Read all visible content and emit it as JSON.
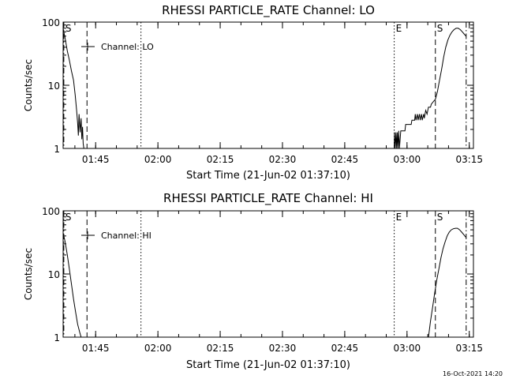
{
  "footer_timestamp": "16-Oct-2021 14:20",
  "chart_data": [
    {
      "type": "line",
      "title": "RHESSI PARTICLE_RATE Channel: LO",
      "xlabel": "Start Time (21-Jun-02 01:37:10)",
      "ylabel": "Counts/sec",
      "yscale": "log",
      "ylim": [
        1,
        100
      ],
      "xlim": [
        "01:37:10",
        "03:16:00"
      ],
      "x_ticks": [
        "01:45",
        "02:00",
        "02:15",
        "02:30",
        "02:45",
        "03:00",
        "03:15"
      ],
      "y_ticks": [
        "1",
        "10",
        "100"
      ],
      "legend": {
        "label": "Channel: LO",
        "position": "top-left"
      },
      "markers": [
        {
          "label": "S",
          "time": "01:37:20",
          "style": "dash-dot"
        },
        {
          "label": "",
          "time": "01:42:55",
          "style": "dashed"
        },
        {
          "label": "",
          "time": "01:55:55",
          "style": "dotted"
        },
        {
          "label": "E",
          "time": "02:56:55",
          "style": "dotted"
        },
        {
          "label": "S",
          "time": "03:06:50",
          "style": "dashed"
        },
        {
          "label": "",
          "time": "03:14:15",
          "style": "dash-dot"
        }
      ],
      "series": [
        {
          "segments": [
            [
              [
                "01:37:10",
                80
              ],
              [
                "01:37:40",
                55
              ],
              [
                "01:38:10",
                35
              ],
              [
                "01:38:40",
                25
              ],
              [
                "01:39:10",
                17
              ],
              [
                "01:39:40",
                12
              ],
              [
                "01:40:05",
                7
              ],
              [
                "01:40:25",
                4
              ],
              [
                "01:40:40",
                2.5
              ],
              [
                "01:40:50",
                1.6
              ],
              [
                "01:41:00",
                3.5
              ],
              [
                "01:41:15",
                1.8
              ],
              [
                "01:41:30",
                3
              ],
              [
                "01:41:40",
                1.4
              ],
              [
                "01:41:50",
                2.2
              ],
              [
                "01:42:00",
                1.2
              ],
              [
                "01:42:10",
                1.0
              ]
            ],
            [
              [
                "02:56:55",
                1.0
              ],
              [
                "02:57:00",
                1.8
              ],
              [
                "02:57:10",
                1.0
              ],
              [
                "02:57:20",
                1.8
              ],
              [
                "02:57:30",
                1.0
              ],
              [
                "02:57:40",
                1.8
              ],
              [
                "02:57:50",
                1.0
              ],
              [
                "02:58:00",
                1.9
              ],
              [
                "02:58:10",
                1.0
              ],
              [
                "02:58:30",
                1.9
              ],
              [
                "02:59:30",
                1.9
              ],
              [
                "02:59:40",
                2.4
              ],
              [
                "03:01:00",
                2.4
              ],
              [
                "03:01:10",
                2.8
              ],
              [
                "03:01:50",
                2.8
              ],
              [
                "03:02:00",
                3.5
              ],
              [
                "03:02:10",
                2.8
              ],
              [
                "03:02:30",
                3.5
              ],
              [
                "03:02:40",
                2.8
              ],
              [
                "03:03:00",
                3.5
              ],
              [
                "03:03:10",
                2.8
              ],
              [
                "03:03:30",
                3.5
              ],
              [
                "03:03:40",
                2.8
              ],
              [
                "03:04:00",
                3.5
              ],
              [
                "03:04:10",
                3.0
              ],
              [
                "03:04:30",
                4.0
              ],
              [
                "03:04:50",
                3.5
              ],
              [
                "03:05:10",
                4.5
              ],
              [
                "03:05:40",
                4.5
              ],
              [
                "03:05:50",
                5.0
              ],
              [
                "03:06:20",
                5.5
              ],
              [
                "03:06:50",
                6.0
              ],
              [
                "03:07:20",
                8.0
              ],
              [
                "03:07:50",
                12.0
              ],
              [
                "03:08:20",
                18.0
              ],
              [
                "03:08:50",
                28.0
              ],
              [
                "03:09:20",
                40.0
              ],
              [
                "03:09:50",
                52.0
              ],
              [
                "03:10:20",
                62.0
              ],
              [
                "03:10:50",
                70.0
              ],
              [
                "03:11:20",
                76.0
              ],
              [
                "03:11:50",
                80.0
              ],
              [
                "03:12:20",
                80.0
              ],
              [
                "03:12:50",
                76.0
              ],
              [
                "03:13:20",
                70.0
              ],
              [
                "03:13:50",
                64.0
              ],
              [
                "03:14:10",
                60.0
              ]
            ]
          ]
        }
      ]
    },
    {
      "type": "line",
      "title": "RHESSI PARTICLE_RATE Channel: HI",
      "xlabel": "Start Time (21-Jun-02 01:37:10)",
      "ylabel": "Counts/sec",
      "yscale": "log",
      "ylim": [
        1,
        100
      ],
      "xlim": [
        "01:37:10",
        "03:16:00"
      ],
      "x_ticks": [
        "01:45",
        "02:00",
        "02:15",
        "02:30",
        "02:45",
        "03:00",
        "03:15"
      ],
      "y_ticks": [
        "1",
        "10",
        "100"
      ],
      "legend": {
        "label": "Channel: HI",
        "position": "top-left"
      },
      "markers": [
        {
          "label": "S",
          "time": "01:37:20",
          "style": "dash-dot"
        },
        {
          "label": "",
          "time": "01:42:55",
          "style": "dashed"
        },
        {
          "label": "",
          "time": "01:55:55",
          "style": "dotted"
        },
        {
          "label": "E",
          "time": "02:56:55",
          "style": "dotted"
        },
        {
          "label": "S",
          "time": "03:06:50",
          "style": "dashed"
        },
        {
          "label": "",
          "time": "03:14:15",
          "style": "dash-dot"
        }
      ],
      "series": [
        {
          "segments": [
            [
              [
                "01:37:10",
                45
              ],
              [
                "01:37:40",
                32
              ],
              [
                "01:38:10",
                20
              ],
              [
                "01:38:40",
                12
              ],
              [
                "01:39:10",
                7
              ],
              [
                "01:39:40",
                4
              ],
              [
                "01:40:10",
                2.5
              ],
              [
                "01:40:40",
                1.6
              ],
              [
                "01:41:10",
                1.2
              ],
              [
                "01:41:30",
                1.0
              ]
            ],
            [
              [
                "03:05:10",
                1.0
              ],
              [
                "03:05:40",
                1.8
              ],
              [
                "03:06:10",
                3.0
              ],
              [
                "03:06:40",
                5.0
              ],
              [
                "03:07:10",
                8.0
              ],
              [
                "03:07:40",
                12.0
              ],
              [
                "03:08:10",
                18.0
              ],
              [
                "03:08:40",
                25.0
              ],
              [
                "03:09:10",
                32.0
              ],
              [
                "03:09:40",
                40.0
              ],
              [
                "03:10:10",
                46.0
              ],
              [
                "03:10:40",
                50.0
              ],
              [
                "03:11:10",
                52.0
              ],
              [
                "03:11:40",
                53.0
              ],
              [
                "03:12:10",
                53.0
              ],
              [
                "03:12:40",
                50.0
              ],
              [
                "03:13:10",
                46.0
              ],
              [
                "03:13:40",
                42.0
              ],
              [
                "03:14:10",
                38.0
              ]
            ]
          ]
        }
      ]
    }
  ]
}
